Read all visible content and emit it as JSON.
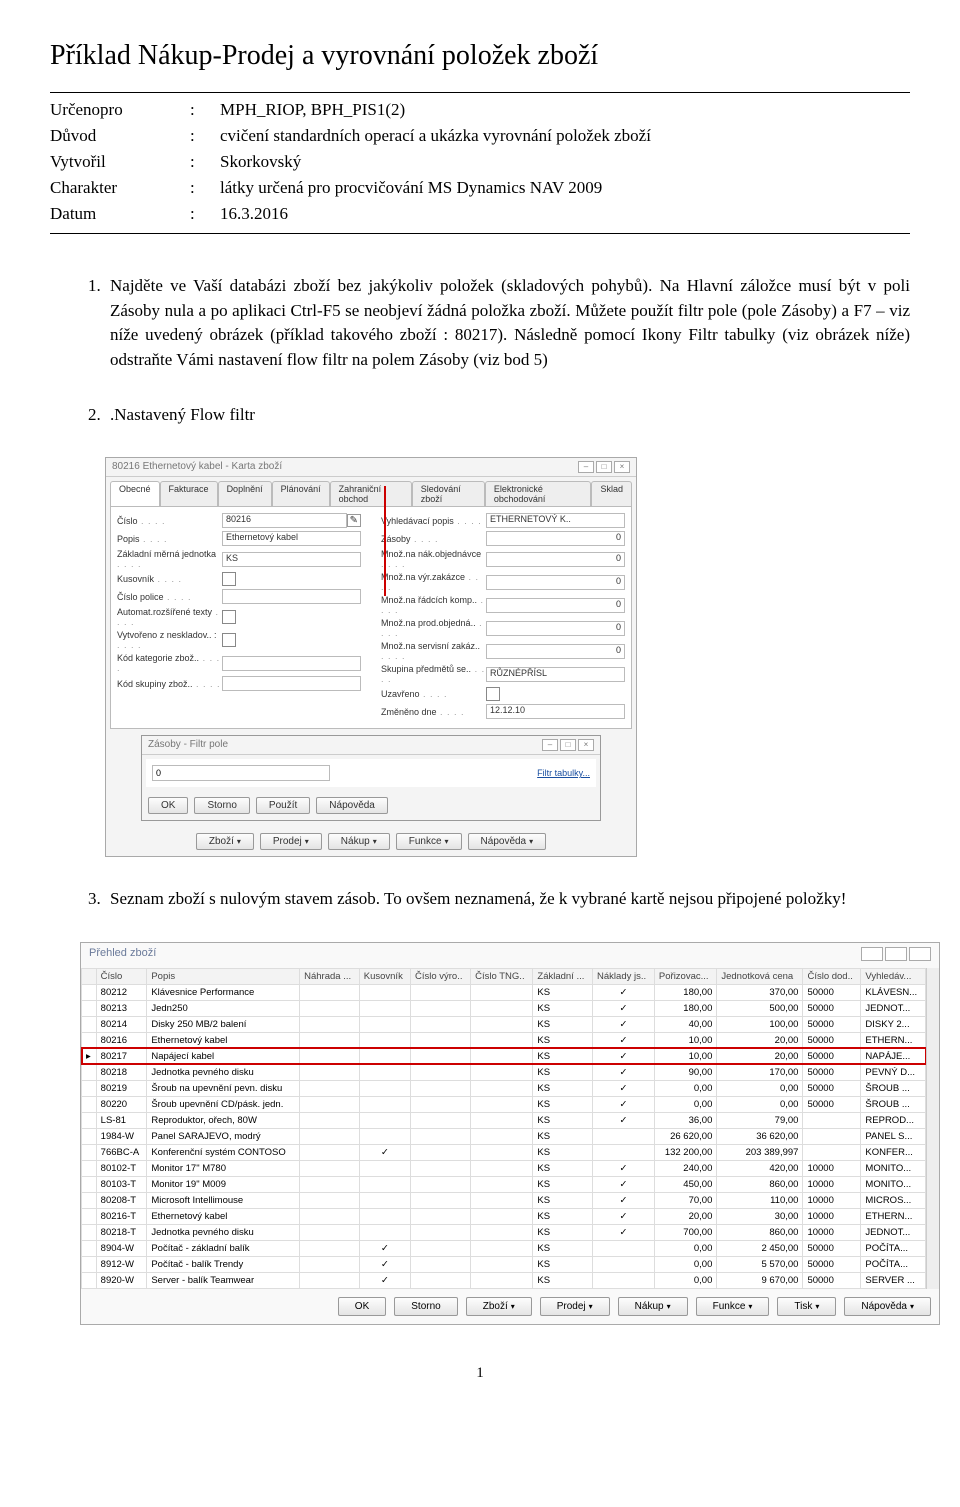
{
  "title": "Příklad Nákup-Prodej a vyrovnání položek zboží",
  "meta": {
    "rows": [
      {
        "label": "Určenopro",
        "value": "MPH_RIOP, BPH_PIS1(2)"
      },
      {
        "label": "Důvod",
        "value": "cvičení standardních operací a ukázka vyrovnání položek zboží"
      },
      {
        "label": "Vytvořil",
        "value": "Skorkovský"
      },
      {
        "label": "Charakter",
        "value": "látky určená pro procvičování MS Dynamics NAV 2009"
      },
      {
        "label": "Datum",
        "value": "16.3.2016"
      }
    ]
  },
  "items": {
    "p1": "Najděte ve Vaší databázi zboží bez jakýkoliv položek (skladových pohybů). Na Hlavní záložce musí být v poli Zásoby nula a po aplikaci Ctrl-F5 se neobjeví žádná položka zboží. Můžete použít filtr pole (pole Zásoby) a F7 – viz níže uvedený obrázek (příklad takového zboží : 80217). Následně pomocí Ikony Filtr tabulky (viz obrázek níže) odstraňte Vámi nastavení flow filtr na polem Zásoby (viz bod 5)",
    "p2": ".Nastavený Flow filtr",
    "p3": "Seznam zboží s nulovým stavem zásob.  To ovšem neznamená, že k vybrané kartě  nejsou připojené položky!"
  },
  "shot1": {
    "winTitle": "80216 Ethernetový kabel - Karta zboží",
    "tabs": [
      "Obecné",
      "Fakturace",
      "Doplnění",
      "Plánování",
      "Zahraniční obchod",
      "Sledování zboží",
      "Elektronické obchodování",
      "Sklad"
    ],
    "left": [
      {
        "lbl": "Číslo",
        "val": "80216",
        "type": "text",
        "align": "left",
        "pencil": true
      },
      {
        "lbl": "Popis",
        "val": "Ethernetový kabel",
        "type": "text",
        "align": "left"
      },
      {
        "lbl": "Základní měrná jednotka",
        "val": "KS",
        "type": "text",
        "align": "left"
      },
      {
        "lbl": "Kusovník",
        "val": "",
        "type": "check"
      },
      {
        "lbl": "Číslo police",
        "val": "",
        "type": "text"
      },
      {
        "lbl": "Automat.rozšířené texty",
        "val": "",
        "type": "check"
      },
      {
        "lbl": "Vytvořeno z neskladov.. :",
        "val": "",
        "type": "check"
      },
      {
        "lbl": "Kód kategorie zbož..",
        "val": "",
        "type": "text"
      },
      {
        "lbl": "Kód skupiny zbož..",
        "val": "",
        "type": "text"
      }
    ],
    "right": [
      {
        "lbl": "Vyhledávací popis",
        "val": "ETHERNETOVÝ K..",
        "align": "left"
      },
      {
        "lbl": "Zásoby",
        "val": "0"
      },
      {
        "lbl": "Množ.na nák.objednávce",
        "val": "0"
      },
      {
        "lbl": "Množ.na výr.zakázce",
        "val": "0"
      },
      {
        "lbl": "Množ.na řádcích komp..",
        "val": "0"
      },
      {
        "lbl": "Množ.na prod.objedná..",
        "val": "0"
      },
      {
        "lbl": "Množ.na servisní zakáz..",
        "val": "0"
      },
      {
        "lbl": "Skupina předmětů se..",
        "val": "RŮZNÉPŘÍSL",
        "align": "left"
      },
      {
        "lbl": "Uzavřeno",
        "val": "",
        "type": "check"
      },
      {
        "lbl": "Změněno dne",
        "val": "12.12.10",
        "align": "left"
      }
    ],
    "filterTitle": "Zásoby - Filtr pole",
    "filterValue": "0",
    "filterLink": "Filtr tabulky...",
    "filterBtns": [
      "OK",
      "Storno",
      "Použít",
      "Nápověda"
    ],
    "bottomBtns": [
      "Zboží",
      "Prodej",
      "Nákup",
      "Funkce",
      "Nápověda"
    ]
  },
  "shot2": {
    "winTitle": "Přehled zboží",
    "columns": [
      "",
      "Číslo",
      "Popis",
      "Náhrada ...",
      "Kusovník",
      "Číslo výro..",
      "Číslo TNG..",
      "Základní ...",
      "Náklady js..",
      "Pořizovac...",
      "Jednotková cena",
      "Číslo dod..",
      "Vyhledáv..."
    ],
    "rows": [
      {
        "c": [
          "",
          "80212",
          "Klávesnice Performance",
          "",
          "",
          "",
          "",
          "KS",
          "✓",
          "180,00",
          "370,00",
          "50000",
          "KLÁVESN..."
        ]
      },
      {
        "c": [
          "",
          "80213",
          "Jedn250",
          "",
          "",
          "",
          "",
          "KS",
          "✓",
          "180,00",
          "500,00",
          "50000",
          "JEDNOT..."
        ]
      },
      {
        "c": [
          "",
          "80214",
          "Disky 250 MB/2 balení",
          "",
          "",
          "",
          "",
          "KS",
          "✓",
          "40,00",
          "100,00",
          "50000",
          "DISKY 2..."
        ]
      },
      {
        "c": [
          "",
          "80216",
          "Ethernetový kabel",
          "",
          "",
          "",
          "",
          "KS",
          "✓",
          "10,00",
          "20,00",
          "50000",
          "ETHERN..."
        ]
      },
      {
        "c": [
          "▸",
          "80217",
          "Napájecí kabel",
          "",
          "",
          "",
          "",
          "KS",
          "✓",
          "10,00",
          "20,00",
          "50000",
          "NAPÁJE..."
        ],
        "hl": true,
        "marker": true
      },
      {
        "c": [
          "",
          "80218",
          "Jednotka pevného disku",
          "",
          "",
          "",
          "",
          "KS",
          "✓",
          "90,00",
          "170,00",
          "50000",
          "PEVNÝ D..."
        ]
      },
      {
        "c": [
          "",
          "80219",
          "Šroub na upevnění pevn. disku",
          "",
          "",
          "",
          "",
          "KS",
          "✓",
          "0,00",
          "0,00",
          "50000",
          "ŠROUB ..."
        ]
      },
      {
        "c": [
          "",
          "80220",
          "Šroub upevnění CD/pásk. jedn.",
          "",
          "",
          "",
          "",
          "KS",
          "✓",
          "0,00",
          "0,00",
          "50000",
          "ŠROUB ..."
        ]
      },
      {
        "c": [
          "",
          "LS-81",
          "Reproduktor, ořech, 80W",
          "",
          "",
          "",
          "",
          "KS",
          "✓",
          "36,00",
          "79,00",
          "",
          "REPROD..."
        ]
      },
      {
        "c": [
          "",
          "1984-W",
          "Panel SARAJEVO, modrý",
          "",
          "",
          "",
          "",
          "KS",
          "",
          "26 620,00",
          "36 620,00",
          "",
          "PANEL S..."
        ]
      },
      {
        "c": [
          "",
          "766BC-A",
          "Konferenční systém CONTOSO",
          "",
          "✓",
          "",
          "",
          "KS",
          "",
          "132 200,00",
          "203 389,997",
          "",
          "KONFER..."
        ]
      },
      {
        "c": [
          "",
          "80102-T",
          "Monitor 17\" M780",
          "",
          "",
          "",
          "",
          "KS",
          "✓",
          "240,00",
          "420,00",
          "10000",
          "MONITO..."
        ]
      },
      {
        "c": [
          "",
          "80103-T",
          "Monitor 19\" M009",
          "",
          "",
          "",
          "",
          "KS",
          "✓",
          "450,00",
          "860,00",
          "10000",
          "MONITO..."
        ]
      },
      {
        "c": [
          "",
          "80208-T",
          "Microsoft Intellimouse",
          "",
          "",
          "",
          "",
          "KS",
          "✓",
          "70,00",
          "110,00",
          "10000",
          "MICROS..."
        ]
      },
      {
        "c": [
          "",
          "80216-T",
          "Ethernetový kabel",
          "",
          "",
          "",
          "",
          "KS",
          "✓",
          "20,00",
          "30,00",
          "10000",
          "ETHERN..."
        ]
      },
      {
        "c": [
          "",
          "80218-T",
          "Jednotka pevného disku",
          "",
          "",
          "",
          "",
          "KS",
          "✓",
          "700,00",
          "860,00",
          "10000",
          "JEDNOT..."
        ]
      },
      {
        "c": [
          "",
          "8904-W",
          "Počítač - základní balík",
          "",
          "✓",
          "",
          "",
          "KS",
          "",
          "0,00",
          "2 450,00",
          "50000",
          "POČÍTA..."
        ]
      },
      {
        "c": [
          "",
          "8912-W",
          "Počítač - balík Trendy",
          "",
          "✓",
          "",
          "",
          "KS",
          "",
          "0,00",
          "5 570,00",
          "50000",
          "POČÍTA..."
        ]
      },
      {
        "c": [
          "",
          "8920-W",
          "Server - balík Teamwear",
          "",
          "✓",
          "",
          "",
          "KS",
          "",
          "0,00",
          "9 670,00",
          "50000",
          "SERVER ..."
        ]
      }
    ],
    "bottomBtns": [
      "OK",
      "Storno",
      "Zboží",
      "Prodej",
      "Nákup",
      "Funkce",
      "Tisk",
      "Nápověda"
    ]
  },
  "pageNumber": "1"
}
